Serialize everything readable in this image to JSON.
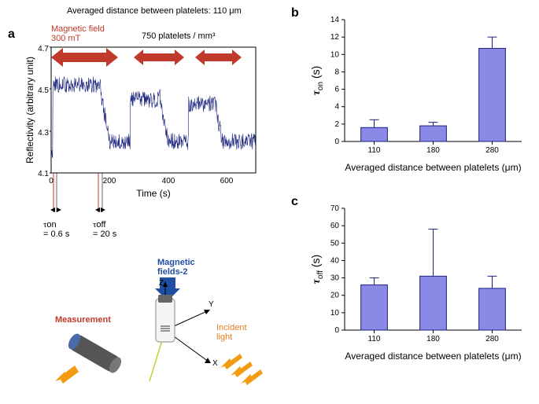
{
  "panel_a": {
    "label": "a",
    "header": "Averaged distance between platelets: 110 μm",
    "magnetic_label": "Magnetic field\n300 mT",
    "platelets_label": "750 platelets / mm³",
    "x_label": "Time (s)",
    "y_label": "Reflectivity (arbitrary unit)",
    "x_ticks": [
      0,
      200,
      400,
      600
    ],
    "y_ticks": [
      4.1,
      4.3,
      4.5,
      4.7
    ],
    "xlim": [
      0,
      700
    ],
    "ylim": [
      4.1,
      4.7
    ],
    "tau_on_label": "τon",
    "tau_on_val": "= 0.6 s",
    "tau_off_label": "τoff",
    "tau_off_val": "= 20 s",
    "line_color": "#1a237e",
    "arrow_color": "#c0392b",
    "diagram": {
      "magnetic_label": "Magnetic\nfields-2",
      "measurement_label": "Measurement",
      "incident_label": "Incident\nlight",
      "axis_x": "X",
      "axis_y": "Y",
      "axis_z": "Z"
    }
  },
  "panel_b": {
    "label": "b",
    "x_label": "Averaged distance between platelets (μm)",
    "y_label": "τon (s)",
    "categories": [
      "110",
      "180",
      "280"
    ],
    "values": [
      1.6,
      1.8,
      10.7
    ],
    "errors": [
      0.9,
      0.4,
      1.3
    ],
    "ylim": [
      0,
      14
    ],
    "yticks": [
      0,
      2,
      4,
      6,
      8,
      10,
      12,
      14
    ],
    "bar_color": "#8a8ae6",
    "bar_border": "#1a237e",
    "err_color": "#1a237e",
    "bg": "#ffffff",
    "axis_color": "#000000",
    "font_size_label": 12,
    "font_size_tick": 10
  },
  "panel_c": {
    "label": "c",
    "x_label": "Averaged distance between platelets (μm)",
    "y_label": "τoff (s)",
    "categories": [
      "110",
      "180",
      "280"
    ],
    "values": [
      26,
      31,
      24
    ],
    "errors": [
      4,
      27,
      7
    ],
    "ylim": [
      0,
      70
    ],
    "yticks": [
      0,
      10,
      20,
      30,
      40,
      50,
      60,
      70
    ],
    "bar_color": "#8a8ae6",
    "bar_border": "#1a237e",
    "err_color": "#1a237e",
    "bg": "#ffffff",
    "axis_color": "#000000",
    "font_size_label": 12,
    "font_size_tick": 10
  }
}
